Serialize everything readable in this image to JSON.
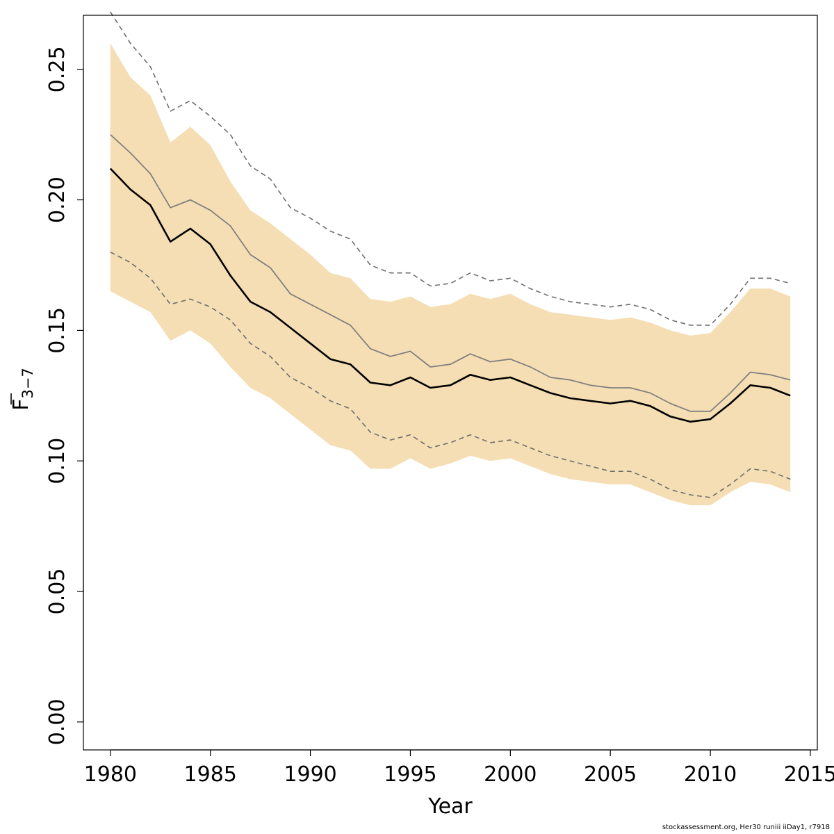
{
  "chart_data": {
    "type": "line",
    "xlabel": "Year",
    "ylabel": {
      "main": "F",
      "subscript": "3−7"
    },
    "xlim": [
      1978.65,
      2015.35
    ],
    "ylim": [
      -0.0107,
      0.2707
    ],
    "x_ticks": [
      1980,
      1985,
      1990,
      1995,
      2000,
      2005,
      2010,
      2015
    ],
    "y_ticks": [
      0.0,
      0.05,
      0.1,
      0.15,
      0.2,
      0.25
    ],
    "y_tick_labels": [
      "0.00",
      "0.05",
      "0.10",
      "0.15",
      "0.20",
      "0.25"
    ],
    "grid": false,
    "years": [
      1980,
      1981,
      1982,
      1983,
      1984,
      1985,
      1986,
      1987,
      1988,
      1989,
      1990,
      1991,
      1992,
      1993,
      1994,
      1995,
      1996,
      1997,
      1998,
      1999,
      2000,
      2001,
      2002,
      2003,
      2004,
      2005,
      2006,
      2007,
      2008,
      2009,
      2010,
      2011,
      2012,
      2013,
      2014
    ],
    "band": {
      "color": "#f5deb3",
      "upper": [
        0.26,
        0.247,
        0.24,
        0.222,
        0.228,
        0.221,
        0.207,
        0.196,
        0.191,
        0.185,
        0.179,
        0.172,
        0.17,
        0.162,
        0.161,
        0.163,
        0.159,
        0.16,
        0.164,
        0.162,
        0.164,
        0.16,
        0.157,
        0.156,
        0.155,
        0.154,
        0.155,
        0.153,
        0.15,
        0.148,
        0.149,
        0.157,
        0.166,
        0.166,
        0.163
      ],
      "lower": [
        0.165,
        0.161,
        0.157,
        0.146,
        0.15,
        0.145,
        0.136,
        0.128,
        0.124,
        0.118,
        0.112,
        0.106,
        0.104,
        0.097,
        0.097,
        0.101,
        0.097,
        0.099,
        0.102,
        0.1,
        0.101,
        0.098,
        0.095,
        0.093,
        0.092,
        0.091,
        0.091,
        0.088,
        0.085,
        0.083,
        0.083,
        0.088,
        0.092,
        0.091,
        0.088
      ]
    },
    "series": [
      {
        "color": "#000000",
        "dash": "solid",
        "width": 2.6,
        "values": [
          0.212,
          0.204,
          0.198,
          0.184,
          0.189,
          0.183,
          0.171,
          0.161,
          0.157,
          0.151,
          0.145,
          0.139,
          0.137,
          0.13,
          0.129,
          0.132,
          0.128,
          0.129,
          0.133,
          0.131,
          0.132,
          0.129,
          0.126,
          0.124,
          0.123,
          0.122,
          0.123,
          0.121,
          0.117,
          0.115,
          0.116,
          0.122,
          0.129,
          0.128,
          0.125
        ]
      },
      {
        "color": "#808080",
        "dash": "solid",
        "width": 1.8,
        "values": [
          0.225,
          0.218,
          0.21,
          0.197,
          0.2,
          0.196,
          0.19,
          0.179,
          0.174,
          0.164,
          0.16,
          0.156,
          0.152,
          0.143,
          0.14,
          0.142,
          0.136,
          0.137,
          0.141,
          0.138,
          0.139,
          0.136,
          0.132,
          0.131,
          0.129,
          0.128,
          0.128,
          0.126,
          0.122,
          0.119,
          0.119,
          0.126,
          0.134,
          0.133,
          0.131
        ]
      },
      {
        "color": "#6e6e6e",
        "dash": "dashed",
        "width": 1.6,
        "values": [
          0.272,
          0.26,
          0.251,
          0.234,
          0.238,
          0.232,
          0.225,
          0.213,
          0.208,
          0.197,
          0.193,
          0.188,
          0.185,
          0.175,
          0.172,
          0.172,
          0.167,
          0.168,
          0.172,
          0.169,
          0.17,
          0.166,
          0.163,
          0.161,
          0.16,
          0.159,
          0.16,
          0.158,
          0.154,
          0.152,
          0.152,
          0.16,
          0.17,
          0.17,
          0.168
        ]
      },
      {
        "color": "#6e6e6e",
        "dash": "dashed",
        "width": 1.6,
        "values": [
          0.18,
          0.176,
          0.17,
          0.16,
          0.162,
          0.159,
          0.154,
          0.145,
          0.14,
          0.132,
          0.128,
          0.123,
          0.12,
          0.111,
          0.108,
          0.11,
          0.105,
          0.107,
          0.11,
          0.107,
          0.108,
          0.105,
          0.102,
          0.1,
          0.098,
          0.096,
          0.096,
          0.093,
          0.089,
          0.087,
          0.086,
          0.091,
          0.097,
          0.096,
          0.093
        ]
      }
    ]
  },
  "footer": "stockassessment.org, Her30  runiii  iiDay1, r7918"
}
